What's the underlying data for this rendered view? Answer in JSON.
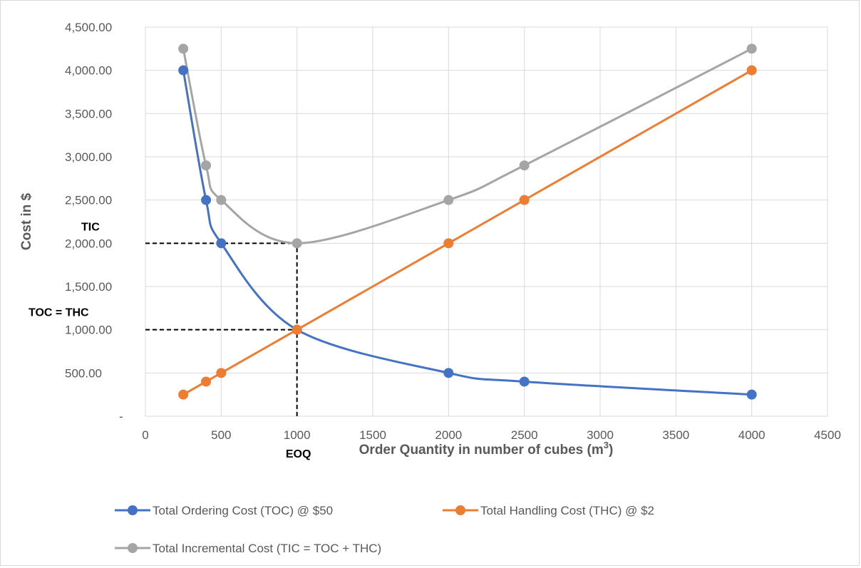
{
  "chart_data": {
    "type": "line",
    "xlabel": "Order Quantity in number of cubes (m³)",
    "ylabel": "Cost in $",
    "xlim": [
      0,
      4500
    ],
    "ylim": [
      0,
      4500
    ],
    "x_ticks": [
      "0",
      "500",
      "1000",
      "1500",
      "2000",
      "2500",
      "3000",
      "3500",
      "4000",
      "4500"
    ],
    "y_ticks": [
      "-",
      "500.00",
      "1,000.00",
      "1,500.00",
      "2,000.00",
      "2,500.00",
      "3,000.00",
      "3,500.00",
      "4,000.00",
      "4,500.00"
    ],
    "grid": true,
    "legend_position": "bottom",
    "series": [
      {
        "name": "Total Ordering Cost (TOC) @ $50",
        "color": "#4472c4",
        "x": [
          250,
          400,
          500,
          1000,
          2000,
          2500,
          4000
        ],
        "y": [
          4000,
          2500,
          2000,
          1000,
          500,
          400,
          250
        ]
      },
      {
        "name": "Total Handling Cost (THC) @ $2",
        "color": "#ed7d31",
        "x": [
          250,
          400,
          500,
          1000,
          2000,
          2500,
          4000
        ],
        "y": [
          250,
          400,
          500,
          1000,
          2000,
          2500,
          4000
        ]
      },
      {
        "name": "Total Incremental Cost (TIC = TOC + THC)",
        "color": "#a5a5a5",
        "x": [
          250,
          400,
          500,
          1000,
          2000,
          2500,
          4000
        ],
        "y": [
          4250,
          2900,
          2500,
          2000,
          2500,
          2900,
          4250
        ]
      }
    ],
    "annotations": [
      {
        "label": "TIC",
        "x": 0,
        "y": 2000
      },
      {
        "label": "TOC = THC",
        "x": 0,
        "y": 1000
      },
      {
        "label": "EOQ",
        "x": 1000,
        "y": 0
      }
    ],
    "reference_lines": [
      {
        "from": [
          0,
          2000
        ],
        "to": [
          1000,
          2000
        ]
      },
      {
        "from": [
          0,
          1000
        ],
        "to": [
          1000,
          1000
        ]
      },
      {
        "from": [
          1000,
          0
        ],
        "to": [
          1000,
          2000
        ]
      }
    ]
  }
}
